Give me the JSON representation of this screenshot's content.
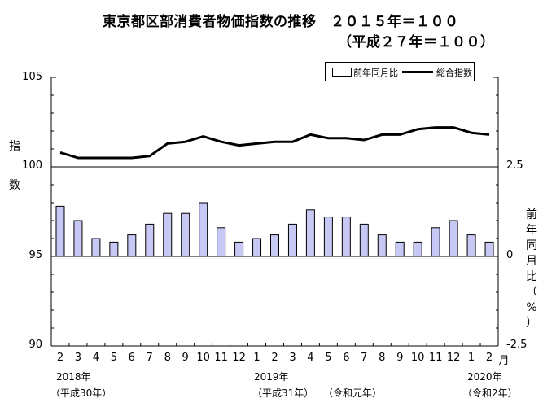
{
  "title": {
    "line1": "東京都区部消費者物価指数の推移　２０１５年＝１００",
    "line2": "（平成２７年＝１００）"
  },
  "y_left_label": [
    "指",
    "数"
  ],
  "y_right_label": [
    "前",
    "年",
    "同",
    "月",
    "比",
    "（",
    "%",
    "）"
  ],
  "month_unit": "月",
  "year_labels": {
    "y2018": "2018年",
    "heisei30": "（平成30年）",
    "y2019": "2019年",
    "heisei31": "（平成31年）",
    "reiwa1": "（令和元年）",
    "y2020": "2020年",
    "reiwa2": "（令和2年）"
  },
  "legend": {
    "bar_label": "前年同月比",
    "line_label": "総合指数"
  },
  "colors": {
    "bar_fill": "#c8c8f5",
    "line": "#000000"
  },
  "chart_data": {
    "type": "bar",
    "categories": [
      "2",
      "3",
      "4",
      "5",
      "6",
      "7",
      "8",
      "9",
      "10",
      "11",
      "12",
      "1",
      "2",
      "3",
      "4",
      "5",
      "6",
      "7",
      "8",
      "9",
      "10",
      "11",
      "12",
      "1",
      "2"
    ],
    "left_axis": {
      "ylim": [
        90,
        105
      ],
      "ticks": [
        "90",
        "95",
        "100",
        "105"
      ]
    },
    "right_axis": {
      "ylim": [
        -2.5,
        5.0
      ],
      "ticks": [
        "-2.5",
        "0",
        "2.5"
      ]
    },
    "series": [
      {
        "name": "前年同月比",
        "type": "bar",
        "axis": "right",
        "values": [
          1.4,
          1.0,
          0.5,
          0.4,
          0.6,
          0.9,
          1.2,
          1.2,
          1.5,
          0.8,
          0.4,
          0.5,
          0.6,
          0.9,
          1.3,
          1.1,
          1.1,
          0.9,
          0.6,
          0.4,
          0.4,
          0.8,
          1.0,
          0.6,
          0.4
        ]
      },
      {
        "name": "総合指数",
        "type": "line",
        "axis": "left",
        "values": [
          100.8,
          100.5,
          100.5,
          100.5,
          100.5,
          100.6,
          101.3,
          101.4,
          101.7,
          101.4,
          101.2,
          101.3,
          101.4,
          101.4,
          101.8,
          101.6,
          101.6,
          101.5,
          101.8,
          101.8,
          102.1,
          102.2,
          102.2,
          101.9,
          101.8
        ]
      }
    ]
  }
}
